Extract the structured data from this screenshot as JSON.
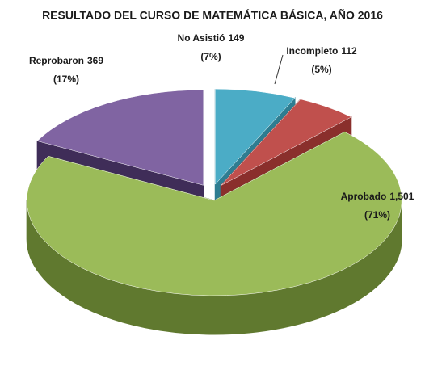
{
  "chart_data": {
    "type": "pie",
    "title": "RESULTADO DEL CURSO DE MATEMÁTICA BÁSICA, AÑO 2016",
    "categories": [
      "No Asistió",
      "Incompleto",
      "Aprobado",
      "Reprobaron"
    ],
    "values": [
      149,
      112,
      1501,
      369
    ],
    "value_labels": [
      "149",
      "112",
      "1,501",
      "369"
    ],
    "percent_labels": [
      "(7%)",
      "(5%)",
      "(71%)",
      "(17%)"
    ],
    "colors": [
      "#4bacc6",
      "#c0504d",
      "#9bbb59",
      "#8064a2"
    ],
    "side_colors": [
      "#2e7d91",
      "#8a2f2c",
      "#60792f",
      "#3f2d58"
    ]
  }
}
